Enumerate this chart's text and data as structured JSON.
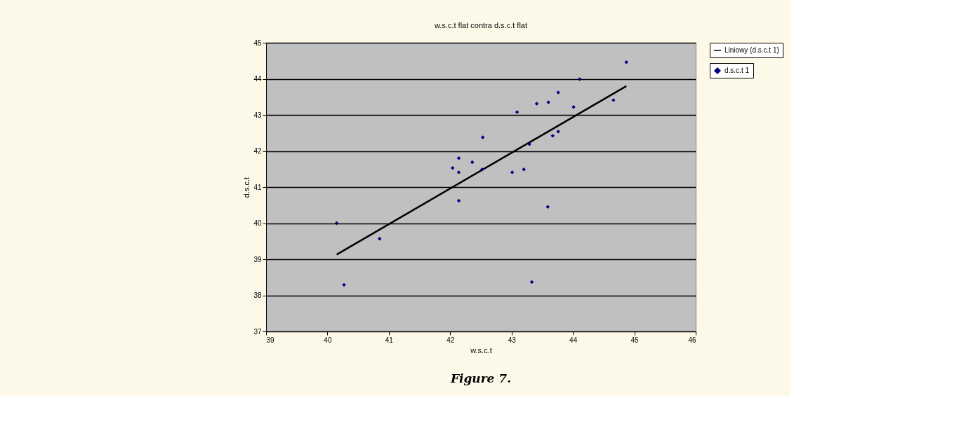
{
  "chart_data": {
    "type": "scatter",
    "title": "w.s.c.t flat contra d.s.c.t flat",
    "xlabel": "w.s.c.t",
    "ylabel": "d.s.c.t",
    "annotations": [
      "Figure 7."
    ],
    "xlim": [
      39,
      46
    ],
    "xticks": [
      39,
      40,
      41,
      42,
      43,
      44,
      45,
      46
    ],
    "ylim": [
      37,
      45
    ],
    "yticks": [
      37,
      38,
      39,
      40,
      41,
      42,
      43,
      44,
      45
    ],
    "grid": "y",
    "legend": "right",
    "series": [
      {
        "name": "d.s.c.t 1",
        "color": "#000080",
        "marker": "diamond",
        "x": [
          40.15,
          40.27,
          40.85,
          42.04,
          42.14,
          42.14,
          42.14,
          42.36,
          42.53,
          42.52,
          43.01,
          43.09,
          43.2,
          43.29,
          43.33,
          43.41,
          43.59,
          43.6,
          43.67,
          43.76,
          43.76,
          44.01,
          44.11,
          44.66,
          44.87
        ],
        "values": [
          40.0,
          38.29,
          39.57,
          41.53,
          41.8,
          41.41,
          40.62,
          41.69,
          42.38,
          41.49,
          41.41,
          43.08,
          41.49,
          42.19,
          38.37,
          43.31,
          40.45,
          43.35,
          42.42,
          42.54,
          43.62,
          43.22,
          43.99,
          43.41,
          44.46
        ]
      },
      {
        "name": "Liniowy (d.s.c.t 1)",
        "color": "#000000",
        "type": "line",
        "line_style": "solid",
        "x": [
          40.15,
          44.87
        ],
        "values": [
          39.13,
          43.8
        ]
      }
    ]
  }
}
